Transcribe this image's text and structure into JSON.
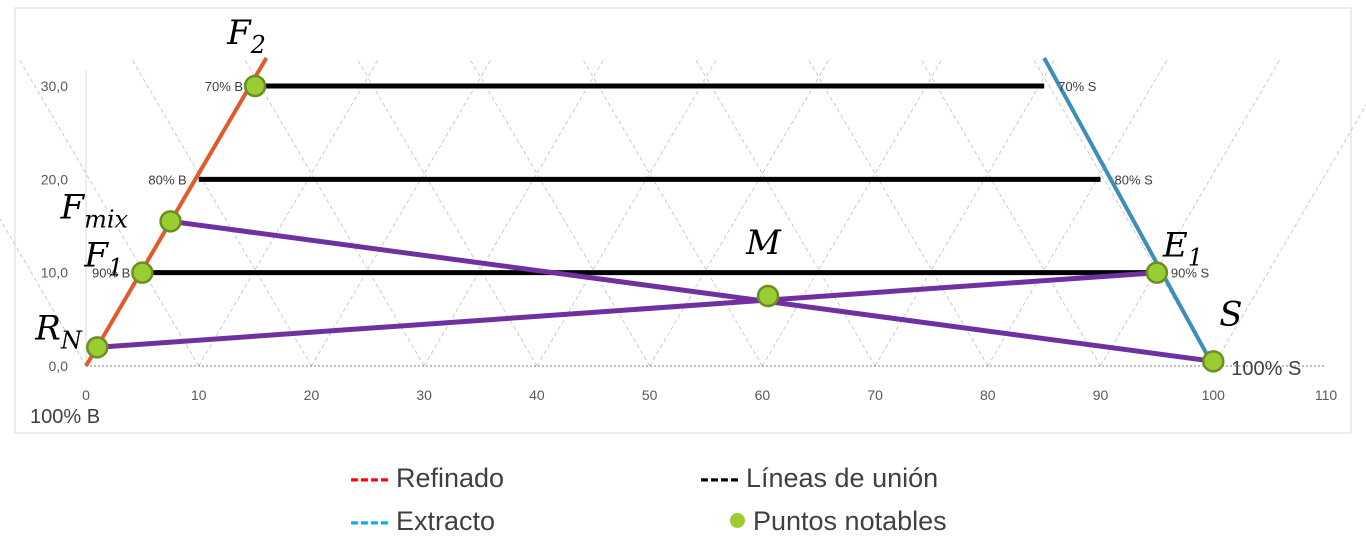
{
  "chart_data": {
    "type": "scatter",
    "title": "",
    "xlabel": "",
    "ylabel": "",
    "xlim": [
      0,
      110
    ],
    "ylim": [
      0,
      30
    ],
    "x_ticks": [
      "0",
      "10",
      "20",
      "30",
      "40",
      "50",
      "60",
      "70",
      "80",
      "90",
      "100",
      "110"
    ],
    "y_ticks": [
      "0,0",
      "10,0",
      "20,0",
      "30,0"
    ],
    "grid": "triangular dashed",
    "colors": {
      "refinado": "#e05a2b",
      "extracto": "#3d8eb9",
      "lineas_union": "#000000",
      "mix_lines": "#7030a0",
      "points": "#9acd32",
      "points_edge": "#6b8e23"
    },
    "series": [
      {
        "name": "Refinado",
        "points": [
          [
            0,
            0
          ],
          [
            16,
            33
          ]
        ]
      },
      {
        "name": "Extracto",
        "points": [
          [
            85,
            33
          ],
          [
            100,
            0
          ]
        ]
      },
      {
        "name": "Líneas de unión",
        "segments": [
          [
            [
              15,
              30
            ],
            [
              85,
              30
            ]
          ],
          [
            [
              10,
              20
            ],
            [
              90,
              20
            ]
          ],
          [
            [
              5,
              10
            ],
            [
              95,
              10
            ]
          ]
        ]
      },
      {
        "name": "Puntos notables",
        "points": [
          {
            "label": "F",
            "sub": "2",
            "x": 15,
            "y": 30
          },
          {
            "label": "F",
            "sub": "mix",
            "x": 7.5,
            "y": 15.5
          },
          {
            "label": "F",
            "sub": "1",
            "x": 5,
            "y": 10
          },
          {
            "label": "R",
            "sub": "N",
            "x": 1,
            "y": 2
          },
          {
            "label": "M",
            "sub": "",
            "x": 60.5,
            "y": 7.5
          },
          {
            "label": "E",
            "sub": "1",
            "x": 95,
            "y": 10
          },
          {
            "label": "S",
            "sub": "",
            "x": 100,
            "y": 0.5
          }
        ]
      }
    ],
    "mix_lines": [
      [
        [
          7.5,
          15.5
        ],
        [
          100,
          0.5
        ]
      ],
      [
        [
          1,
          2
        ],
        [
          95,
          10
        ]
      ]
    ],
    "annotations": [
      {
        "text": "70% B",
        "x": 15,
        "y": 30,
        "side": "left"
      },
      {
        "text": "70% S",
        "x": 85,
        "y": 30,
        "side": "right"
      },
      {
        "text": "80% B",
        "x": 10,
        "y": 20,
        "side": "left"
      },
      {
        "text": "80% S",
        "x": 90,
        "y": 20,
        "side": "right"
      },
      {
        "text": "90% B",
        "x": 5,
        "y": 10,
        "side": "left"
      },
      {
        "text": "90% S",
        "x": 95,
        "y": 10,
        "side": "right"
      }
    ],
    "corner_labels": {
      "bottom_left": "100% B",
      "bottom_right": "100% S"
    }
  },
  "legend": {
    "items": [
      {
        "marker": "----",
        "label": "Refinado",
        "color": "#ff0000"
      },
      {
        "marker": "----",
        "label": "Extracto",
        "color": "#00b0f0"
      },
      {
        "marker": "----",
        "label": "Líneas de unión",
        "color": "#000000"
      },
      {
        "marker": "dot",
        "label": "Puntos notables",
        "color": "#9acd32"
      }
    ]
  }
}
